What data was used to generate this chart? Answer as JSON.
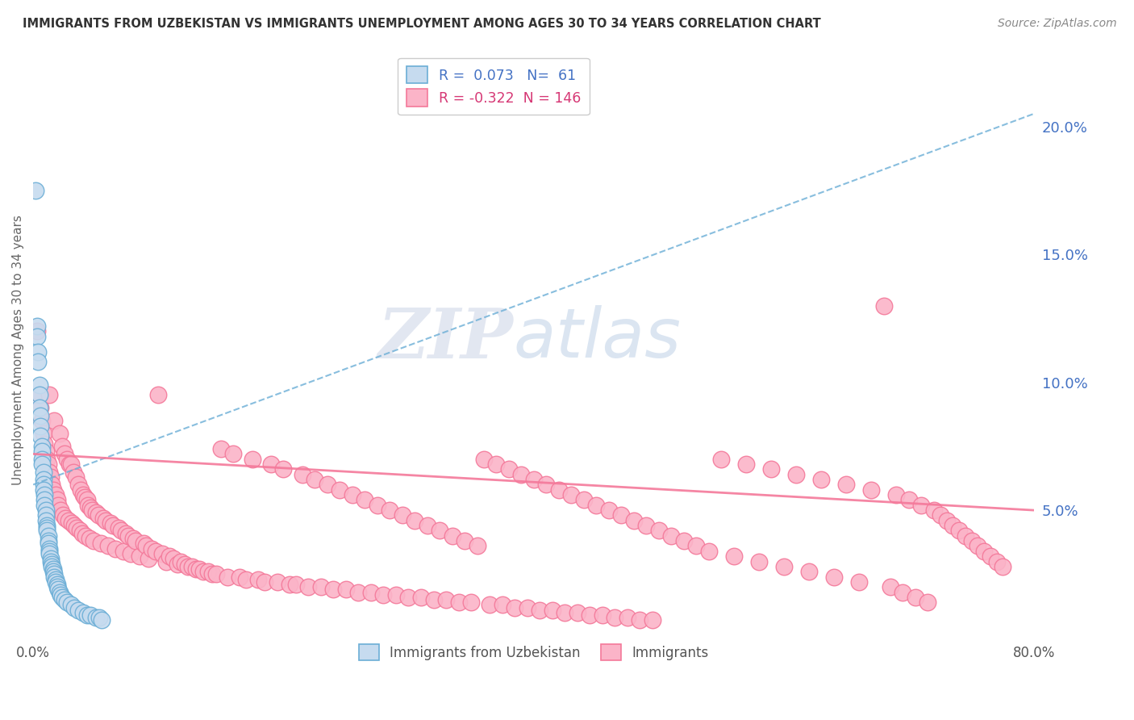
{
  "title": "IMMIGRANTS FROM UZBEKISTAN VS IMMIGRANTS UNEMPLOYMENT AMONG AGES 30 TO 34 YEARS CORRELATION CHART",
  "source": "Source: ZipAtlas.com",
  "ylabel": "Unemployment Among Ages 30 to 34 years",
  "xlim": [
    0,
    0.8
  ],
  "ylim": [
    0,
    0.225
  ],
  "yticks": [
    0.05,
    0.1,
    0.15,
    0.2
  ],
  "ytick_labels": [
    "5.0%",
    "10.0%",
    "15.0%",
    "20.0%"
  ],
  "legend_blue_label": "Immigrants from Uzbekistan",
  "legend_pink_label": "Immigrants",
  "R_blue": 0.073,
  "N_blue": 61,
  "R_pink": -0.322,
  "N_pink": 146,
  "blue_color": "#6baed6",
  "blue_light": "#c6dbef",
  "pink_color": "#f4799a",
  "pink_light": "#fbb4c8",
  "watermark_ZIP": "ZIP",
  "watermark_atlas": "atlas",
  "background": "#ffffff",
  "grid_color": "#cccccc",
  "title_color": "#333333",
  "blue_trend": [
    0.0,
    0.06,
    0.8,
    0.205
  ],
  "pink_trend": [
    0.0,
    0.072,
    0.8,
    0.05
  ],
  "blue_scatter": [
    [
      0.002,
      0.175
    ],
    [
      0.003,
      0.122
    ],
    [
      0.003,
      0.118
    ],
    [
      0.004,
      0.112
    ],
    [
      0.004,
      0.108
    ],
    [
      0.005,
      0.099
    ],
    [
      0.005,
      0.095
    ],
    [
      0.005,
      0.09
    ],
    [
      0.006,
      0.087
    ],
    [
      0.006,
      0.083
    ],
    [
      0.006,
      0.079
    ],
    [
      0.007,
      0.075
    ],
    [
      0.007,
      0.073
    ],
    [
      0.007,
      0.07
    ],
    [
      0.007,
      0.068
    ],
    [
      0.008,
      0.065
    ],
    [
      0.008,
      0.062
    ],
    [
      0.008,
      0.06
    ],
    [
      0.008,
      0.058
    ],
    [
      0.009,
      0.056
    ],
    [
      0.009,
      0.054
    ],
    [
      0.009,
      0.052
    ],
    [
      0.01,
      0.05
    ],
    [
      0.01,
      0.048
    ],
    [
      0.01,
      0.046
    ],
    [
      0.011,
      0.044
    ],
    [
      0.011,
      0.043
    ],
    [
      0.011,
      0.042
    ],
    [
      0.012,
      0.04
    ],
    [
      0.012,
      0.038
    ],
    [
      0.012,
      0.037
    ],
    [
      0.013,
      0.035
    ],
    [
      0.013,
      0.034
    ],
    [
      0.013,
      0.033
    ],
    [
      0.014,
      0.031
    ],
    [
      0.014,
      0.03
    ],
    [
      0.015,
      0.029
    ],
    [
      0.015,
      0.028
    ],
    [
      0.016,
      0.027
    ],
    [
      0.016,
      0.026
    ],
    [
      0.017,
      0.025
    ],
    [
      0.017,
      0.024
    ],
    [
      0.018,
      0.023
    ],
    [
      0.018,
      0.022
    ],
    [
      0.019,
      0.021
    ],
    [
      0.019,
      0.02
    ],
    [
      0.02,
      0.019
    ],
    [
      0.021,
      0.018
    ],
    [
      0.022,
      0.017
    ],
    [
      0.023,
      0.016
    ],
    [
      0.025,
      0.015
    ],
    [
      0.027,
      0.014
    ],
    [
      0.03,
      0.013
    ],
    [
      0.033,
      0.012
    ],
    [
      0.036,
      0.011
    ],
    [
      0.04,
      0.01
    ],
    [
      0.043,
      0.009
    ],
    [
      0.046,
      0.009
    ],
    [
      0.05,
      0.008
    ],
    [
      0.053,
      0.008
    ],
    [
      0.055,
      0.007
    ]
  ],
  "pink_scatter": [
    [
      0.003,
      0.12
    ],
    [
      0.005,
      0.095
    ],
    [
      0.006,
      0.09
    ],
    [
      0.007,
      0.085
    ],
    [
      0.008,
      0.08
    ],
    [
      0.009,
      0.076
    ],
    [
      0.01,
      0.073
    ],
    [
      0.011,
      0.07
    ],
    [
      0.012,
      0.068
    ],
    [
      0.013,
      0.095
    ],
    [
      0.013,
      0.065
    ],
    [
      0.014,
      0.063
    ],
    [
      0.015,
      0.06
    ],
    [
      0.016,
      0.058
    ],
    [
      0.017,
      0.085
    ],
    [
      0.018,
      0.056
    ],
    [
      0.019,
      0.054
    ],
    [
      0.02,
      0.052
    ],
    [
      0.021,
      0.08
    ],
    [
      0.022,
      0.05
    ],
    [
      0.023,
      0.075
    ],
    [
      0.024,
      0.048
    ],
    [
      0.025,
      0.072
    ],
    [
      0.026,
      0.047
    ],
    [
      0.027,
      0.07
    ],
    [
      0.028,
      0.046
    ],
    [
      0.029,
      0.068
    ],
    [
      0.03,
      0.068
    ],
    [
      0.031,
      0.045
    ],
    [
      0.032,
      0.065
    ],
    [
      0.033,
      0.044
    ],
    [
      0.034,
      0.063
    ],
    [
      0.035,
      0.043
    ],
    [
      0.036,
      0.06
    ],
    [
      0.037,
      0.042
    ],
    [
      0.038,
      0.058
    ],
    [
      0.039,
      0.041
    ],
    [
      0.04,
      0.056
    ],
    [
      0.041,
      0.055
    ],
    [
      0.042,
      0.04
    ],
    [
      0.043,
      0.054
    ],
    [
      0.044,
      0.052
    ],
    [
      0.045,
      0.039
    ],
    [
      0.046,
      0.051
    ],
    [
      0.047,
      0.05
    ],
    [
      0.048,
      0.038
    ],
    [
      0.05,
      0.049
    ],
    [
      0.052,
      0.048
    ],
    [
      0.054,
      0.037
    ],
    [
      0.056,
      0.047
    ],
    [
      0.058,
      0.046
    ],
    [
      0.06,
      0.036
    ],
    [
      0.062,
      0.045
    ],
    [
      0.064,
      0.044
    ],
    [
      0.066,
      0.035
    ],
    [
      0.068,
      0.043
    ],
    [
      0.07,
      0.042
    ],
    [
      0.072,
      0.034
    ],
    [
      0.074,
      0.041
    ],
    [
      0.076,
      0.04
    ],
    [
      0.078,
      0.033
    ],
    [
      0.08,
      0.039
    ],
    [
      0.082,
      0.038
    ],
    [
      0.085,
      0.032
    ],
    [
      0.088,
      0.037
    ],
    [
      0.09,
      0.036
    ],
    [
      0.092,
      0.031
    ],
    [
      0.095,
      0.035
    ],
    [
      0.098,
      0.034
    ],
    [
      0.1,
      0.095
    ],
    [
      0.103,
      0.033
    ],
    [
      0.106,
      0.03
    ],
    [
      0.109,
      0.032
    ],
    [
      0.112,
      0.031
    ],
    [
      0.115,
      0.029
    ],
    [
      0.118,
      0.03
    ],
    [
      0.121,
      0.029
    ],
    [
      0.124,
      0.028
    ],
    [
      0.127,
      0.028
    ],
    [
      0.13,
      0.027
    ],
    [
      0.133,
      0.027
    ],
    [
      0.136,
      0.026
    ],
    [
      0.14,
      0.026
    ],
    [
      0.143,
      0.025
    ],
    [
      0.146,
      0.025
    ],
    [
      0.15,
      0.074
    ],
    [
      0.155,
      0.024
    ],
    [
      0.16,
      0.072
    ],
    [
      0.165,
      0.024
    ],
    [
      0.17,
      0.023
    ],
    [
      0.175,
      0.07
    ],
    [
      0.18,
      0.023
    ],
    [
      0.185,
      0.022
    ],
    [
      0.19,
      0.068
    ],
    [
      0.195,
      0.022
    ],
    [
      0.2,
      0.066
    ],
    [
      0.205,
      0.021
    ],
    [
      0.21,
      0.021
    ],
    [
      0.215,
      0.064
    ],
    [
      0.22,
      0.02
    ],
    [
      0.225,
      0.062
    ],
    [
      0.23,
      0.02
    ],
    [
      0.235,
      0.06
    ],
    [
      0.24,
      0.019
    ],
    [
      0.245,
      0.058
    ],
    [
      0.25,
      0.019
    ],
    [
      0.255,
      0.056
    ],
    [
      0.26,
      0.018
    ],
    [
      0.265,
      0.054
    ],
    [
      0.27,
      0.018
    ],
    [
      0.275,
      0.052
    ],
    [
      0.28,
      0.017
    ],
    [
      0.285,
      0.05
    ],
    [
      0.29,
      0.017
    ],
    [
      0.295,
      0.048
    ],
    [
      0.3,
      0.016
    ],
    [
      0.305,
      0.046
    ],
    [
      0.31,
      0.016
    ],
    [
      0.315,
      0.044
    ],
    [
      0.32,
      0.015
    ],
    [
      0.325,
      0.042
    ],
    [
      0.33,
      0.015
    ],
    [
      0.335,
      0.04
    ],
    [
      0.34,
      0.014
    ],
    [
      0.345,
      0.038
    ],
    [
      0.35,
      0.014
    ],
    [
      0.355,
      0.036
    ],
    [
      0.36,
      0.07
    ],
    [
      0.365,
      0.013
    ],
    [
      0.37,
      0.068
    ],
    [
      0.375,
      0.013
    ],
    [
      0.38,
      0.066
    ],
    [
      0.385,
      0.012
    ],
    [
      0.39,
      0.064
    ],
    [
      0.395,
      0.012
    ],
    [
      0.4,
      0.062
    ],
    [
      0.405,
      0.011
    ],
    [
      0.41,
      0.06
    ],
    [
      0.415,
      0.011
    ],
    [
      0.42,
      0.058
    ],
    [
      0.425,
      0.01
    ],
    [
      0.43,
      0.056
    ],
    [
      0.435,
      0.01
    ],
    [
      0.44,
      0.054
    ],
    [
      0.445,
      0.009
    ],
    [
      0.45,
      0.052
    ],
    [
      0.455,
      0.009
    ],
    [
      0.46,
      0.05
    ],
    [
      0.465,
      0.008
    ],
    [
      0.47,
      0.048
    ],
    [
      0.475,
      0.008
    ],
    [
      0.48,
      0.046
    ],
    [
      0.485,
      0.007
    ],
    [
      0.49,
      0.044
    ],
    [
      0.495,
      0.007
    ],
    [
      0.5,
      0.042
    ],
    [
      0.51,
      0.04
    ],
    [
      0.52,
      0.038
    ],
    [
      0.53,
      0.036
    ],
    [
      0.54,
      0.034
    ],
    [
      0.55,
      0.07
    ],
    [
      0.56,
      0.032
    ],
    [
      0.57,
      0.068
    ],
    [
      0.58,
      0.03
    ],
    [
      0.59,
      0.066
    ],
    [
      0.6,
      0.028
    ],
    [
      0.61,
      0.064
    ],
    [
      0.62,
      0.026
    ],
    [
      0.63,
      0.062
    ],
    [
      0.64,
      0.024
    ],
    [
      0.65,
      0.06
    ],
    [
      0.66,
      0.022
    ],
    [
      0.67,
      0.058
    ],
    [
      0.68,
      0.13
    ],
    [
      0.685,
      0.02
    ],
    [
      0.69,
      0.056
    ],
    [
      0.695,
      0.018
    ],
    [
      0.7,
      0.054
    ],
    [
      0.705,
      0.016
    ],
    [
      0.71,
      0.052
    ],
    [
      0.715,
      0.014
    ],
    [
      0.72,
      0.05
    ],
    [
      0.725,
      0.048
    ],
    [
      0.73,
      0.046
    ],
    [
      0.735,
      0.044
    ],
    [
      0.74,
      0.042
    ],
    [
      0.745,
      0.04
    ],
    [
      0.75,
      0.038
    ],
    [
      0.755,
      0.036
    ],
    [
      0.76,
      0.034
    ],
    [
      0.765,
      0.032
    ],
    [
      0.77,
      0.03
    ],
    [
      0.775,
      0.028
    ]
  ]
}
